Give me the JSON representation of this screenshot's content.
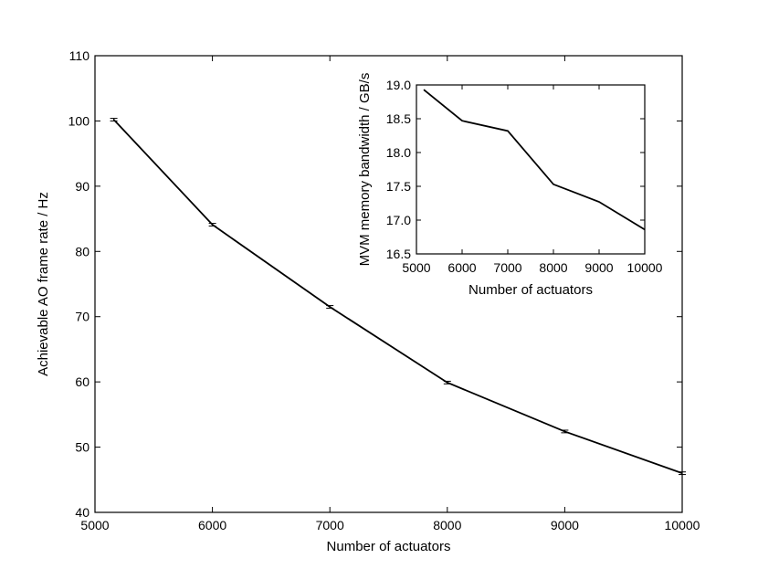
{
  "chart_data": [
    {
      "type": "line",
      "title": "",
      "xlabel": "Number of actuators",
      "ylabel": "Achievable AO frame rate / Hz",
      "xlim": [
        5000,
        10000
      ],
      "ylim": [
        40,
        110
      ],
      "xticks": [
        5000,
        6000,
        7000,
        8000,
        9000,
        10000
      ],
      "yticks": [
        40,
        50,
        60,
        70,
        80,
        90,
        100,
        110
      ],
      "grid": false,
      "error_bars": true,
      "series": [
        {
          "x": [
            5160,
            6000,
            7000,
            8000,
            9000,
            10000
          ],
          "y": [
            100.2,
            84.1,
            71.5,
            59.9,
            52.4,
            46.0
          ],
          "yerr": [
            0.2,
            0.2,
            0.2,
            0.2,
            0.2,
            0.2
          ]
        }
      ]
    },
    {
      "type": "line",
      "title": "",
      "xlabel": "Number of actuators",
      "ylabel": "MVM memory bandwidth / GB/s",
      "xlim": [
        5000,
        10000
      ],
      "ylim": [
        16.5,
        19.0
      ],
      "xticks": [
        5000,
        6000,
        7000,
        8000,
        9000,
        10000
      ],
      "yticks": [
        "16.5",
        "17.0",
        "17.5",
        "18.0",
        "18.5",
        "19.0"
      ],
      "grid": false,
      "series": [
        {
          "x": [
            5160,
            6000,
            7000,
            8000,
            9000,
            10000
          ],
          "y": [
            18.93,
            18.47,
            18.32,
            17.53,
            17.27,
            16.86
          ]
        }
      ]
    }
  ]
}
